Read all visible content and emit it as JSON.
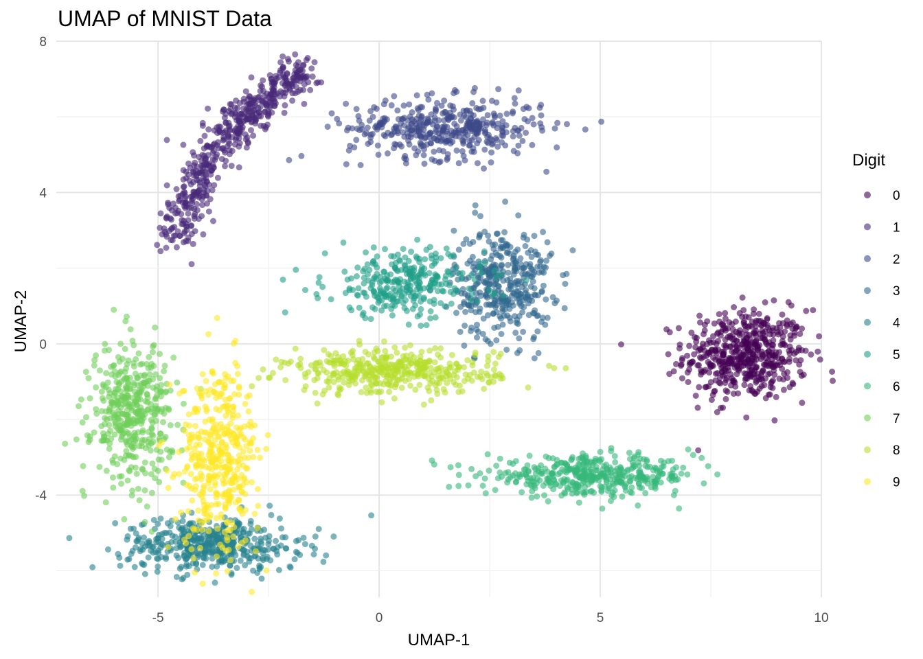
{
  "chart_data": {
    "type": "scatter",
    "title": "UMAP of MNIST Data",
    "xlabel": "UMAP-1",
    "ylabel": "UMAP-2",
    "xlim": [
      -7.3,
      10
    ],
    "ylim": [
      -6.7,
      8
    ],
    "x_ticks": [
      -5,
      0,
      5,
      10
    ],
    "y_ticks": [
      -4,
      0,
      4,
      8
    ],
    "x_tick_labels": [
      "-5",
      "0",
      "5",
      "10"
    ],
    "y_tick_labels": [
      "-4",
      "0",
      "4",
      "8"
    ],
    "grid": true,
    "legend": {
      "title": "Digit",
      "position": "right",
      "entries": [
        "0",
        "1",
        "2",
        "3",
        "4",
        "5",
        "6",
        "7",
        "8",
        "9"
      ]
    },
    "colors": [
      "#440154",
      "#482878",
      "#3e4989",
      "#31688e",
      "#26828e",
      "#1f9e89",
      "#35b779",
      "#6ece58",
      "#b5de2b",
      "#fde725"
    ],
    "point_opacity": 0.6,
    "clusters": [
      {
        "digit": "0",
        "center": [
          8.3,
          -0.3
        ],
        "spread": [
          0.7,
          0.6
        ],
        "n": 520,
        "shape": "blob"
      },
      {
        "digit": "1",
        "center": [
          -3.2,
          5.2
        ],
        "spread": [
          0.25,
          0.25
        ],
        "n": 520,
        "shape": "arc",
        "arc_from": [
          -4.6,
          2.8
        ],
        "arc_to": [
          -1.6,
          7.2
        ]
      },
      {
        "digit": "2",
        "center": [
          1.5,
          5.7
        ],
        "spread": [
          1.1,
          0.4
        ],
        "n": 420,
        "shape": "blob"
      },
      {
        "digit": "3",
        "center": [
          2.8,
          1.6
        ],
        "spread": [
          0.55,
          0.75
        ],
        "n": 380,
        "shape": "blob"
      },
      {
        "digit": "4",
        "center": [
          -3.8,
          -5.3
        ],
        "spread": [
          1.0,
          0.35
        ],
        "n": 460,
        "shape": "blob"
      },
      {
        "digit": "5",
        "center": [
          0.6,
          1.6
        ],
        "spread": [
          0.9,
          0.45
        ],
        "n": 300,
        "shape": "blob"
      },
      {
        "digit": "6",
        "center": [
          4.8,
          -3.5
        ],
        "spread": [
          1.2,
          0.25
        ],
        "n": 420,
        "shape": "blob"
      },
      {
        "digit": "7",
        "center": [
          -5.6,
          -1.8
        ],
        "spread": [
          0.45,
          0.9
        ],
        "n": 420,
        "shape": "blob"
      },
      {
        "digit": "8",
        "center": [
          0.3,
          -0.75
        ],
        "spread": [
          1.2,
          0.3
        ],
        "n": 400,
        "shape": "blob"
      },
      {
        "digit": "9",
        "center": [
          -3.6,
          -3.0
        ],
        "spread": [
          0.45,
          1.2
        ],
        "n": 420,
        "shape": "blob"
      }
    ]
  }
}
